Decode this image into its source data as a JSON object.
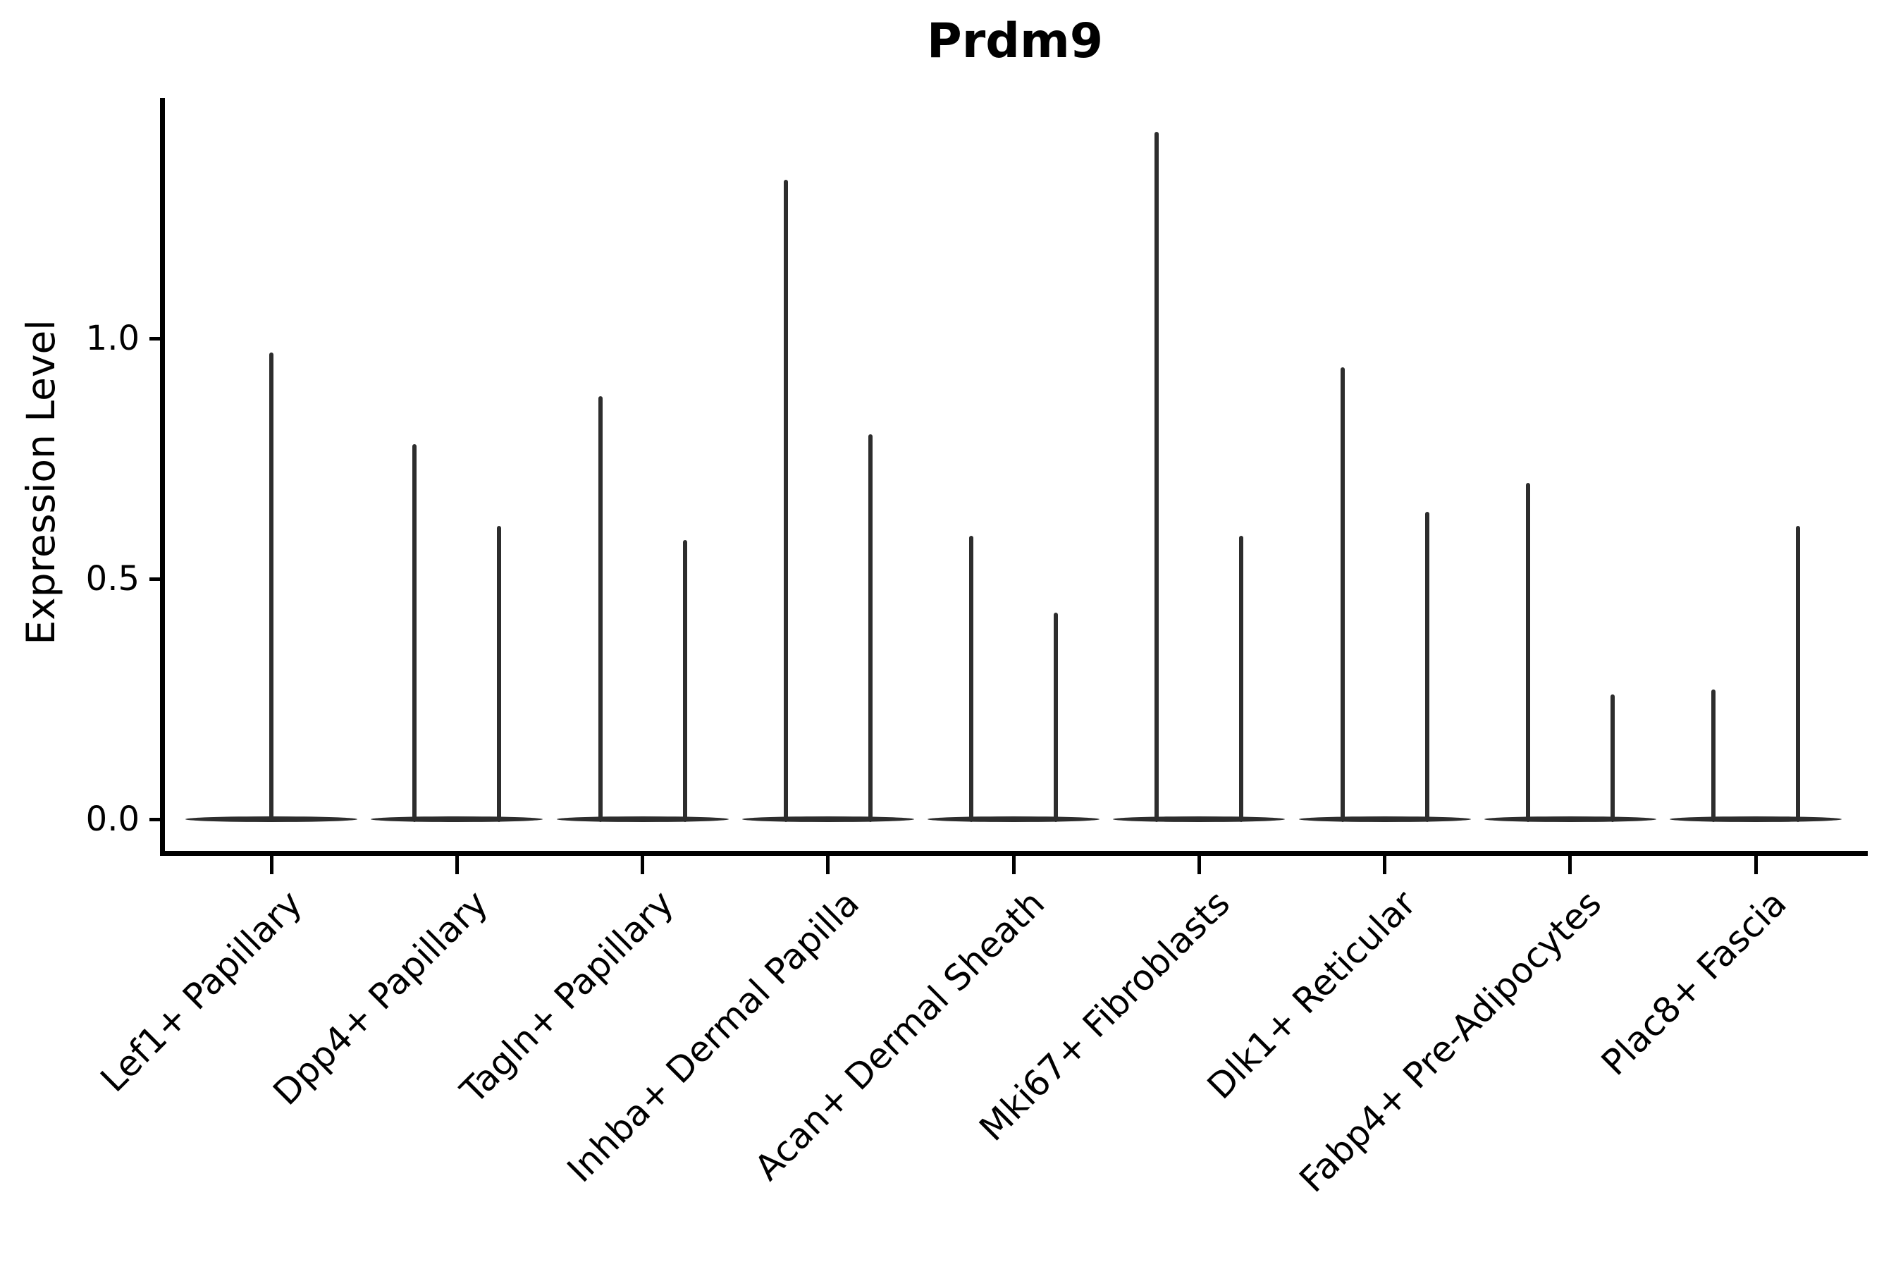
{
  "title": "Prdm9",
  "colors": {
    "violin": "#2d2d2d",
    "axis": "#000000",
    "background": "#ffffff"
  },
  "chart_data": {
    "type": "violin",
    "title": "Prdm9",
    "xlabel": "",
    "ylabel": "Expression Level",
    "ylim": [
      -0.08,
      1.5
    ],
    "grid": false,
    "legend": false,
    "y_ticks": [
      {
        "label": "0.0",
        "value": 0.0
      },
      {
        "label": "0.5",
        "value": 0.5
      },
      {
        "label": "1.0",
        "value": 1.0
      }
    ],
    "categories": [
      "Lef1+ Papillary",
      "Dpp4+ Papillary",
      "Tagln+ Papillary",
      "Inhba+ Dermal Papilla",
      "Acan+ Dermal Sheath",
      "Mki67+ Fibroblasts",
      "Dlk1+ Reticular",
      "Fabp4+ Pre-Adipocytes",
      "Plac8+ Fascia"
    ],
    "series": [
      {
        "category": "Lef1+ Papillary",
        "baseline_value": 0.0,
        "spike_maxima": [
          0.97
        ]
      },
      {
        "category": "Dpp4+ Papillary",
        "baseline_value": 0.0,
        "spike_maxima": [
          0.78,
          0.61
        ]
      },
      {
        "category": "Tagln+ Papillary",
        "baseline_value": 0.0,
        "spike_maxima": [
          0.88,
          0.58
        ]
      },
      {
        "category": "Inhba+ Dermal Papilla",
        "baseline_value": 0.0,
        "spike_maxima": [
          1.33,
          0.8
        ]
      },
      {
        "category": "Acan+ Dermal Sheath",
        "baseline_value": 0.0,
        "spike_maxima": [
          0.59,
          0.43
        ]
      },
      {
        "category": "Mki67+ Fibroblasts",
        "baseline_value": 0.0,
        "spike_maxima": [
          1.43,
          0.59
        ]
      },
      {
        "category": "Dlk1+ Reticular",
        "baseline_value": 0.0,
        "spike_maxima": [
          0.94,
          0.64
        ]
      },
      {
        "category": "Fabp4+ Pre-Adipocytes",
        "baseline_value": 0.0,
        "spike_maxima": [
          0.7,
          0.26
        ]
      },
      {
        "category": "Plac8+ Fascia",
        "baseline_value": 0.0,
        "spike_maxima": [
          0.27,
          0.61
        ]
      }
    ]
  }
}
